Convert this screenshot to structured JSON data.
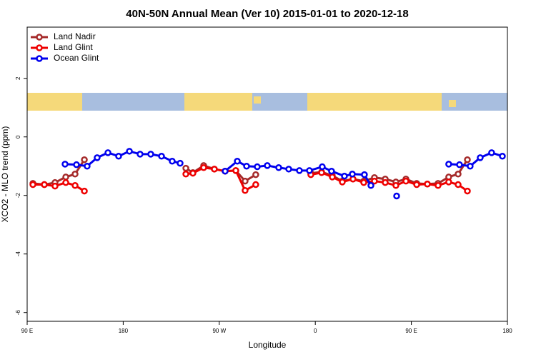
{
  "chart_data": {
    "type": "line",
    "title": "40N-50N Annual Mean (Ver 10)   2015-01-01 to 2020-12-18",
    "x_label": "Longitude",
    "y_label": "XCO2 - MLO trend (ppm)",
    "xlim": [
      90,
      540
    ],
    "ylim": [
      -6.3,
      3.75
    ],
    "xticks": [
      {
        "value": 90,
        "label": "90 E"
      },
      180,
      {
        "value": 270,
        "label": "90 W"
      },
      {
        "value": 360,
        "label": "0"
      },
      {
        "value": 450,
        "label": "90 E"
      },
      {
        "value": 540,
        "label": "180"
      }
    ],
    "yticks": [
      -6,
      -4,
      -2,
      0,
      2
    ],
    "legend": "top-left",
    "series": [
      {
        "name": "Land Nadir",
        "color": "#a52a2a",
        "x": [
          95.4,
          106.1,
          116.1,
          126.2,
          134.9,
          143.6,
          null,
          238.7,
          245.3,
          255.4,
          265.4,
          275.5,
          285.5,
          294.2,
          304.2,
          null,
          355.8,
          365.9,
          375.9,
          385.3,
          395.3,
          405.4,
          415.4,
          425.5,
          435.5,
          444.9,
          455,
          465,
          475,
          485,
          493.8,
          502.5
        ],
        "values": [
          -1.59,
          -1.63,
          -1.56,
          -1.37,
          -1.27,
          -0.78,
          null,
          -1.07,
          -1.22,
          -0.98,
          -1.1,
          -1.17,
          -1.15,
          -1.51,
          -1.29,
          null,
          -1.24,
          -1.2,
          -1.32,
          -1.51,
          -1.44,
          -1.51,
          -1.39,
          -1.44,
          -1.54,
          -1.44,
          -1.59,
          -1.61,
          -1.59,
          -1.37,
          -1.27,
          -0.78
        ]
      },
      {
        "name": "Land Glint",
        "color": "#ee0000",
        "x": [
          95.4,
          106.1,
          116.1,
          126.2,
          134.9,
          143.6,
          null,
          238.7,
          245.3,
          255.4,
          265.4,
          275.5,
          285.5,
          294.2,
          304.2,
          null,
          355.8,
          365.9,
          375.9,
          385.3,
          395.3,
          405.4,
          415.4,
          425.5,
          435.5,
          444.9,
          455,
          465,
          475,
          485,
          493.8,
          502.5
        ],
        "values": [
          -1.63,
          -1.63,
          -1.68,
          -1.56,
          -1.66,
          -1.85,
          null,
          -1.27,
          -1.24,
          -1.05,
          -1.1,
          -1.17,
          -1.15,
          -1.83,
          -1.63,
          null,
          -1.29,
          -1.22,
          -1.37,
          -1.54,
          -1.44,
          -1.56,
          -1.51,
          -1.56,
          -1.66,
          -1.51,
          -1.63,
          -1.61,
          -1.66,
          -1.54,
          -1.63,
          -1.85
        ]
      },
      {
        "name": "Ocean Glint",
        "color": "#0000ee",
        "x": [
          125.5,
          136.2,
          146.2,
          155.6,
          165.7,
          175.7,
          185.8,
          195.8,
          205.8,
          215.9,
          225.9,
          233.3,
          null,
          275.5,
          286.9,
          295.6,
          305.6,
          315,
          325.7,
          335.1,
          345.1,
          354.5,
          366.5,
          375.2,
          387.3,
          394.7,
          406,
          412.1,
          null,
          436.2,
          null,
          485,
          495.1,
          505.1,
          514.5,
          525.2,
          535.3
        ],
        "values": [
          -0.93,
          -0.95,
          -1.0,
          -0.71,
          -0.54,
          -0.66,
          -0.49,
          -0.59,
          -0.59,
          -0.66,
          -0.83,
          -0.9,
          null,
          -1.17,
          -0.83,
          -1.0,
          -1.02,
          -0.98,
          -1.05,
          -1.1,
          -1.15,
          -1.15,
          -1.02,
          -1.17,
          -1.34,
          -1.27,
          -1.29,
          -1.66,
          null,
          -2.02,
          null,
          -0.93,
          -0.95,
          -1.0,
          -0.71,
          -0.54,
          -0.66
        ]
      }
    ]
  }
}
